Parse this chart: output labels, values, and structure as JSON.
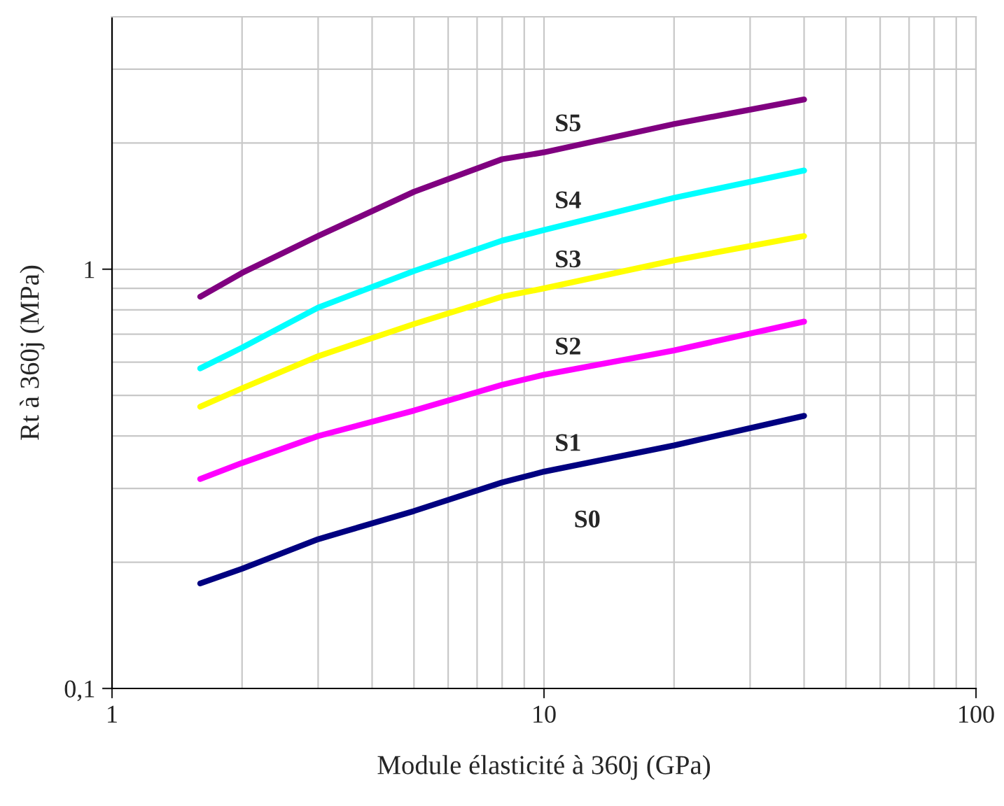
{
  "chart_data": {
    "type": "line",
    "xlabel": "Module élasticité à 360j (GPa)",
    "ylabel": "Rt à 360j (MPa)",
    "log": "xy",
    "grid": true,
    "legend": false,
    "marker": "none",
    "line_style": "solid",
    "xlim": [
      1,
      100
    ],
    "xticks": [
      1,
      10,
      100
    ],
    "ylim": [
      0.1,
      4
    ],
    "yticks": [
      {
        "value": 0.1,
        "label": "0,1"
      },
      1
    ],
    "x": [
      1.6,
      2,
      3,
      5,
      8,
      10,
      20,
      40
    ],
    "series": [
      {
        "name": "S5",
        "color": "#800080",
        "values": [
          0.86,
          0.98,
          1.2,
          1.53,
          1.83,
          1.9,
          2.22,
          2.54
        ]
      },
      {
        "name": "S4",
        "color": "#00ffff",
        "values": [
          0.58,
          0.65,
          0.81,
          0.99,
          1.17,
          1.24,
          1.48,
          1.72
        ]
      },
      {
        "name": "S3",
        "color": "#ffff00",
        "values": [
          0.47,
          0.52,
          0.62,
          0.74,
          0.86,
          0.9,
          1.05,
          1.2
        ]
      },
      {
        "name": "S2",
        "color": "#ff00ff",
        "values": [
          0.316,
          0.345,
          0.4,
          0.46,
          0.53,
          0.56,
          0.64,
          0.75
        ]
      },
      {
        "name": "S1",
        "color": "#000080",
        "values": [
          0.178,
          0.193,
          0.227,
          0.265,
          0.31,
          0.329,
          0.38,
          0.447
        ]
      }
    ],
    "annotations": [
      "S0"
    ]
  }
}
